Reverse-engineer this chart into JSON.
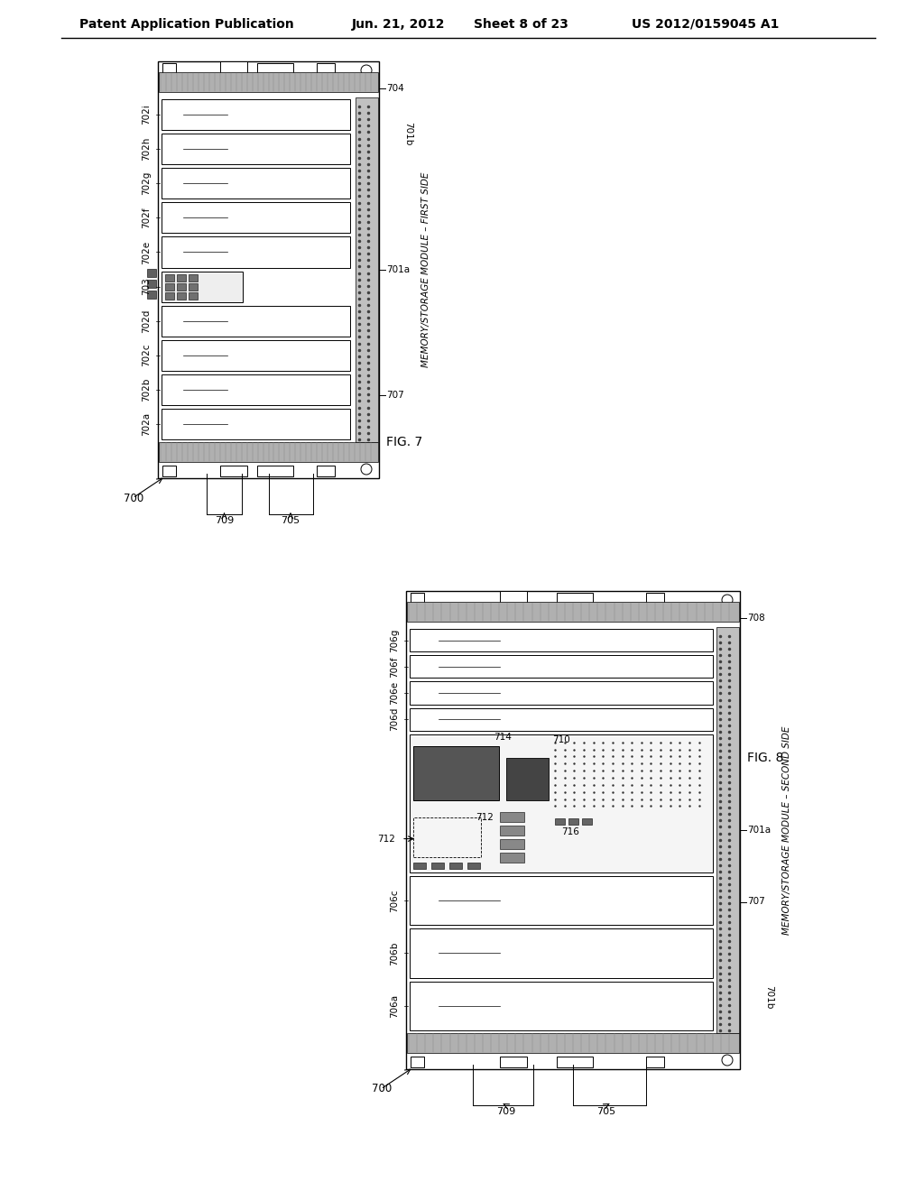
{
  "bg_color": "#ffffff",
  "fig7_label": "FIG. 7",
  "fig8_label": "FIG. 8",
  "header1": "Patent Application Publication",
  "header2": "Jun. 21, 2012",
  "header3": "Sheet 8 of 23",
  "header4": "US 2012/0159045 A1"
}
